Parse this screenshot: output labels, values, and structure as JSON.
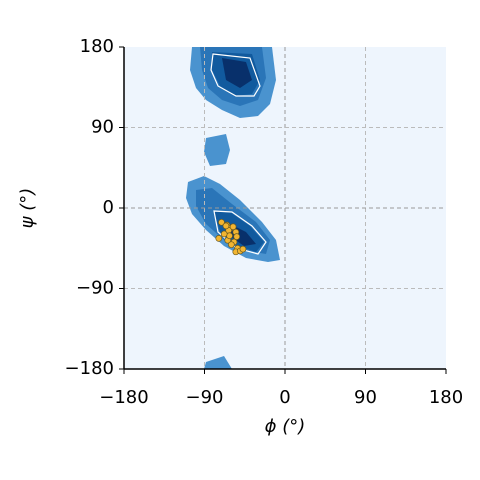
{
  "chart_data": {
    "type": "scatter",
    "xlabel": "ϕ (°)",
    "ylabel": "ψ (°)",
    "xlim": [
      -180,
      180
    ],
    "ylim": [
      -180,
      180
    ],
    "xticks": [
      {
        "value": -180,
        "label": "−180"
      },
      {
        "value": -90,
        "label": "−90"
      },
      0,
      90,
      180
    ],
    "yticks": [
      {
        "value": -180,
        "label": "−180"
      },
      {
        "value": -90,
        "label": "−90"
      },
      0,
      90,
      180
    ],
    "grid": true,
    "color": "#f2b531",
    "x": [
      -71,
      -65,
      -60,
      -63,
      -55,
      -66,
      -58,
      -74,
      -64,
      -57,
      -53,
      -55,
      -50,
      -60,
      -47,
      -62,
      -54,
      -68
    ],
    "y": [
      -16,
      -19,
      -22,
      -25,
      -27,
      -20,
      -21,
      -34,
      -36,
      -38,
      -45,
      -49,
      -48,
      -41,
      -46,
      -31,
      -32,
      -29
    ]
  }
}
